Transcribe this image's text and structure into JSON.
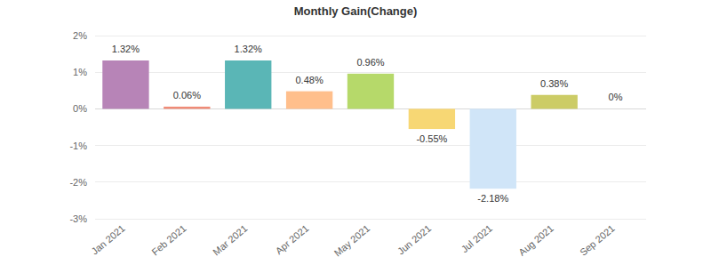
{
  "chart_data": {
    "type": "bar",
    "title": "Monthly Gain(Change)",
    "categories": [
      "Jan 2021",
      "Feb 2021",
      "Mar 2021",
      "Apr 2021",
      "May 2021",
      "Jun 2021",
      "Jul 2021",
      "Aug 2021",
      "Sep 2021"
    ],
    "values": [
      1.32,
      0.06,
      1.32,
      0.48,
      0.96,
      -0.55,
      -2.18,
      0.38,
      0
    ],
    "value_labels": [
      "1.32%",
      "0.06%",
      "1.32%",
      "0.48%",
      "0.96%",
      "-0.55%",
      "-2.18%",
      "0.38%",
      "0%"
    ],
    "colors": [
      "#b784b7",
      "#f08b77",
      "#5ab6b6",
      "#ffbf8c",
      "#b6d96a",
      "#f7d774",
      "#d0e5f8",
      "#cccc66",
      "#8fb3d9"
    ],
    "ylim": [
      -3,
      2
    ],
    "yticks": [
      {
        "value": -3,
        "label": "-3%"
      },
      {
        "value": -2,
        "label": "-2%"
      },
      {
        "value": -1,
        "label": "-1%"
      },
      {
        "value": 0,
        "label": "0%"
      },
      {
        "value": 1,
        "label": "1%"
      },
      {
        "value": 2,
        "label": "2%"
      }
    ],
    "grid": true,
    "data_labels": true
  }
}
